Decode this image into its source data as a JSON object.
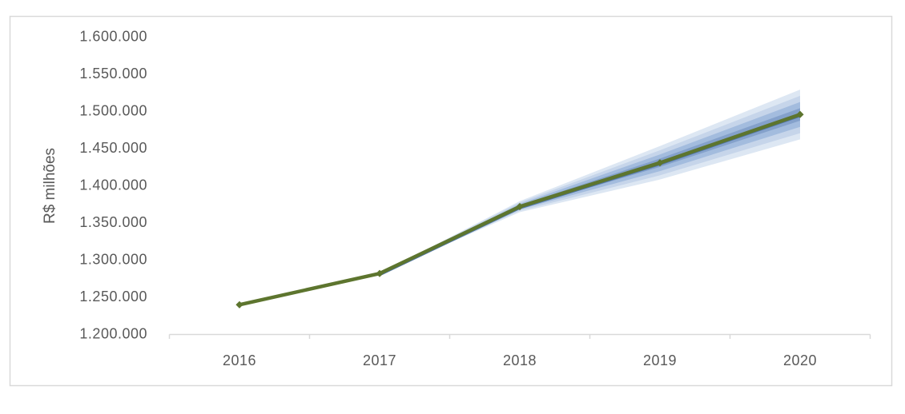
{
  "window": {
    "background": "#ffffff"
  },
  "colors": {
    "frame_border": "#d9d9d9",
    "axis": "#d9d9d9",
    "tick_text": "#595959",
    "line_green": "#5d752e",
    "fan_center_line": "#4f74a3",
    "fan_bands_outer_to_inner": [
      "#dde7f3",
      "#c6d5ea",
      "#a3bcde",
      "#84a1cb"
    ]
  },
  "chart_data": {
    "type": "line",
    "title": "",
    "xlabel": "",
    "ylabel": "R$ milhões",
    "x": [
      2016,
      2017,
      2018,
      2019,
      2020
    ],
    "x_tick_labels": [
      "2016",
      "2017",
      "2018",
      "2019",
      "2020"
    ],
    "ylim": [
      1200000,
      1600000
    ],
    "ytick_step": 50000,
    "y_tick_labels": [
      "1.600.000",
      "1.550.000",
      "1.500.000",
      "1.450.000",
      "1.400.000",
      "1.350.000",
      "1.300.000",
      "1.250.000",
      "1.200.000"
    ],
    "grid": false,
    "legend": null,
    "series": [
      {
        "name": "series-1",
        "color": "#5d752e",
        "marker": "diamond",
        "values": [
          1240000,
          1282000,
          1372000,
          1431000,
          1496000
        ]
      }
    ],
    "fan": {
      "x": [
        2017,
        2018,
        2019,
        2020
      ],
      "center": [
        1282000,
        1372000,
        1431000,
        1496000
      ],
      "outer_half_width": [
        0,
        7500,
        22500,
        33500
      ],
      "band_fractions": [
        1,
        0.75,
        0.5,
        0.25
      ],
      "band_colors_outer_to_inner": [
        "#dde7f3",
        "#c6d5ea",
        "#a3bcde",
        "#84a1cb"
      ],
      "center_line_color": "#4f74a3"
    }
  }
}
